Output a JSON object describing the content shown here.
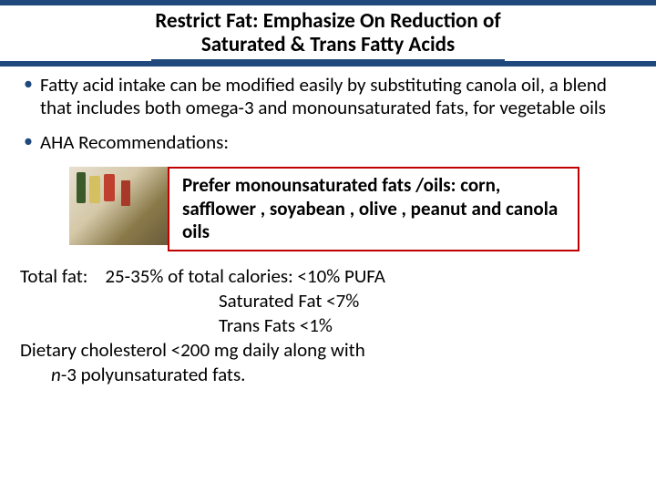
{
  "colors": {
    "header_bg": "#1f497d",
    "title_underline": "#1f497d",
    "bullet_color": "#1f497d",
    "callout_border": "#c00000",
    "text": "#000000",
    "background": "#ffffff"
  },
  "typography": {
    "title_fontsize": 23,
    "body_fontsize": 21,
    "callout_fontsize": 21,
    "font_family": "Calibri"
  },
  "title": {
    "line1": "Restrict Fat: Emphasize  On Reduction of",
    "line2": "Saturated & Trans Fatty Acids"
  },
  "bullets": [
    "Fatty acid intake can be modified easily by substituting canola oil, a blend that includes both omega-3 and monounsaturated fats, for vegetable oils",
    "AHA  Recommendations:"
  ],
  "callout": {
    "text": "Prefer  monounsaturated fats /oils: corn, safflower , soyabean , olive , peanut  and canola oils",
    "image_alt": "healthy-oils-photo"
  },
  "totals": {
    "l1": "Total fat:    25-35% of total calories: <10% PUFA",
    "l2": "Saturated Fat <7%",
    "l3": "Trans Fats <1%",
    "l4": "Dietary cholesterol <200 mg daily along with",
    "l5_prefix": "     ",
    "l5_italic": "n",
    "l5_rest": "-3 polyunsaturated fats."
  }
}
